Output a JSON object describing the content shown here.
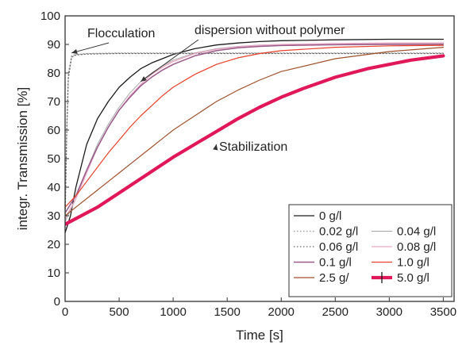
{
  "chart_data": {
    "type": "line",
    "xlabel": "Time [s]",
    "ylabel": "integr. Transmission [%]",
    "xlim": [
      0,
      3600
    ],
    "ylim": [
      0,
      100
    ],
    "xticks": [
      0,
      500,
      1000,
      1500,
      2000,
      2500,
      3000,
      3500
    ],
    "yticks": [
      0,
      10,
      20,
      30,
      40,
      50,
      60,
      70,
      80,
      90,
      100
    ],
    "grid": false,
    "legend_position": "bottom-right",
    "annotations": [
      {
        "text": "Flocculation",
        "target": [
          60,
          87
        ]
      },
      {
        "text": "dispersion without polymer",
        "target": [
          700,
          77
        ]
      },
      {
        "text": "Stabilization",
        "target": [
          1400,
          55
        ]
      }
    ],
    "series": [
      {
        "name": "0 g/l",
        "color": "#1a1a1a",
        "style": "solid",
        "width": 1.3,
        "x": [
          0,
          50,
          100,
          200,
          300,
          400,
          500,
          600,
          700,
          800,
          900,
          1000,
          1200,
          1400,
          1600,
          1800,
          2000,
          2500,
          3000,
          3500
        ],
        "y": [
          24,
          30,
          40,
          55,
          64,
          70,
          75,
          78.5,
          81.5,
          83.5,
          85,
          86.5,
          88.5,
          89.8,
          90.5,
          91,
          91.3,
          91.6,
          91.8,
          91.8
        ]
      },
      {
        "name": "0.02 g/l",
        "color": "#9a9a9a",
        "style": "dotted",
        "width": 1.2,
        "x": [
          0,
          15,
          30,
          60,
          100,
          200,
          500,
          1000,
          2000,
          3000,
          3500
        ],
        "y": [
          28,
          60,
          80,
          86,
          86.5,
          86.8,
          87,
          87,
          87,
          87,
          87
        ]
      },
      {
        "name": "0.04 g/l",
        "color": "#a8a8a8",
        "style": "solid",
        "width": 1.0,
        "x": [
          0,
          100,
          200,
          300,
          400,
          500,
          600,
          700,
          800,
          900,
          1000,
          1200,
          1400,
          1600,
          1800,
          2000,
          2500,
          3000,
          3500
        ],
        "y": [
          28,
          36,
          46,
          55,
          62,
          68,
          73,
          77,
          80,
          82.5,
          84.5,
          87,
          88.5,
          89.3,
          89.8,
          90,
          90.2,
          90.3,
          90.3
        ]
      },
      {
        "name": "0.06 g/l",
        "color": "#6e6e6e",
        "style": "dotted",
        "width": 1.2,
        "x": [
          0,
          15,
          30,
          60,
          100,
          200,
          500,
          1000,
          2000,
          3000,
          3500
        ],
        "y": [
          28,
          58,
          78,
          85.5,
          86.3,
          86.6,
          86.8,
          86.8,
          86.8,
          86.8,
          86.8
        ]
      },
      {
        "name": "0.08 g/l",
        "color": "#e9a9c4",
        "style": "solid",
        "width": 1.3,
        "x": [
          0,
          100,
          200,
          300,
          400,
          500,
          600,
          700,
          800,
          900,
          1000,
          1200,
          1400,
          1600,
          1800,
          2000,
          2500,
          3000,
          3500
        ],
        "y": [
          29,
          36,
          45,
          54,
          61,
          67,
          72,
          76,
          79.5,
          82,
          84,
          86.8,
          88.3,
          89.2,
          89.7,
          90,
          90.3,
          90.5,
          90.5
        ]
      },
      {
        "name": "0.1 g/l",
        "color": "#9a5a8a",
        "style": "solid",
        "width": 1.5,
        "x": [
          0,
          100,
          200,
          300,
          400,
          500,
          600,
          700,
          800,
          900,
          1000,
          1200,
          1400,
          1600,
          1800,
          2000,
          2500,
          3000,
          3500
        ],
        "y": [
          31,
          37,
          46,
          54,
          61,
          67,
          71.5,
          75.5,
          78.5,
          81,
          83,
          86,
          87.8,
          88.8,
          89.3,
          89.6,
          89.9,
          90,
          90
        ]
      },
      {
        "name": "1.0 g/l",
        "color": "#e8402a",
        "style": "solid",
        "width": 1.2,
        "x": [
          0,
          100,
          200,
          300,
          400,
          500,
          600,
          700,
          800,
          900,
          1000,
          1200,
          1400,
          1600,
          1800,
          2000,
          2500,
          3000,
          3500
        ],
        "y": [
          33,
          37,
          42,
          47,
          52,
          56.5,
          61,
          65,
          68.5,
          72,
          75,
          79.5,
          83,
          85.3,
          86.8,
          87.8,
          89,
          89.5,
          89.7
        ]
      },
      {
        "name": "2.5 g/",
        "color": "#a0522d",
        "style": "solid",
        "width": 1.2,
        "x": [
          0,
          100,
          200,
          300,
          400,
          500,
          600,
          700,
          800,
          900,
          1000,
          1200,
          1400,
          1600,
          1800,
          2000,
          2500,
          3000,
          3500
        ],
        "y": [
          30,
          33,
          36,
          39,
          42,
          45,
          48,
          51,
          54,
          57,
          60,
          65,
          70,
          74,
          77.5,
          80.5,
          85,
          87.5,
          89
        ]
      },
      {
        "name": "5.0 g/l",
        "color": "#e0185a",
        "style": "solid",
        "width": 4.2,
        "x": [
          0,
          100,
          200,
          300,
          400,
          500,
          600,
          700,
          800,
          900,
          1000,
          1200,
          1400,
          1600,
          1800,
          2000,
          2200,
          2500,
          2800,
          3000,
          3200,
          3500
        ],
        "y": [
          27,
          29,
          31,
          33,
          35.5,
          38,
          40.5,
          43,
          45.5,
          48,
          50.5,
          55,
          59.5,
          64,
          68,
          71.5,
          74.5,
          78.5,
          81.5,
          83,
          84.5,
          86
        ]
      }
    ]
  }
}
